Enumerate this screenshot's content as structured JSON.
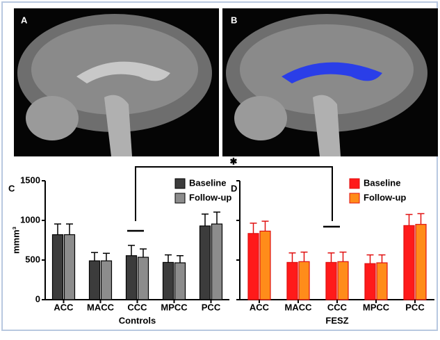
{
  "panels": [
    "A",
    "B"
  ],
  "significance": "✱",
  "chart_data": [
    {
      "type": "bar",
      "panel": "C",
      "xlabel": "Controls",
      "ylabel": "mmm³",
      "categories": [
        "ACC",
        "MACC",
        "CCC",
        "MPCC",
        "PCC"
      ],
      "series": [
        {
          "name": "Baseline",
          "color": "#3c3c3c",
          "values": [
            820,
            490,
            555,
            470,
            930
          ],
          "errors": [
            135,
            105,
            130,
            95,
            150
          ]
        },
        {
          "name": "Follow-up",
          "color": "#8c8c8c",
          "values": [
            820,
            490,
            535,
            465,
            955
          ],
          "errors": [
            135,
            95,
            105,
            90,
            150
          ]
        }
      ],
      "ylim": [
        0,
        1500
      ],
      "yticks": [
        0,
        500,
        1000,
        1500
      ],
      "tick_labels": true
    },
    {
      "type": "bar",
      "panel": "D",
      "xlabel": "FESZ",
      "categories": [
        "ACC",
        "MACC",
        "CCC",
        "MPCC",
        "PCC"
      ],
      "series": [
        {
          "name": "Baseline",
          "color": "#ff1a1a",
          "values": [
            835,
            470,
            470,
            455,
            935
          ],
          "errors": [
            130,
            120,
            120,
            110,
            140
          ]
        },
        {
          "name": "Follow-up",
          "color": "#ff8c1a",
          "values": [
            865,
            480,
            480,
            465,
            950
          ],
          "errors": [
            125,
            120,
            120,
            100,
            135
          ]
        }
      ],
      "ylim": [
        0,
        1500
      ],
      "yticks": [
        0,
        500,
        1000,
        1500
      ],
      "tick_labels": false
    }
  ]
}
